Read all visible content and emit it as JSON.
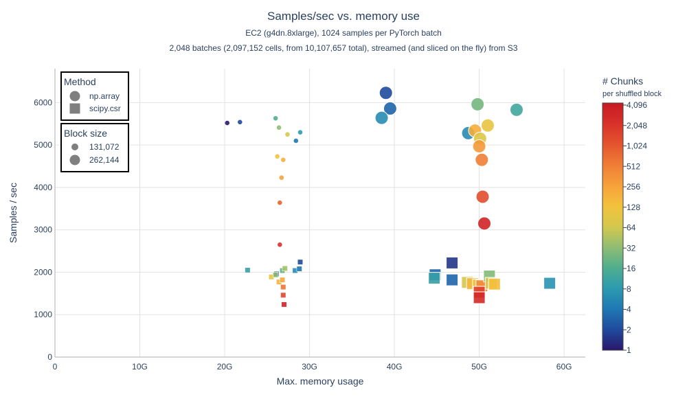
{
  "chart_data": {
    "type": "scatter",
    "title": "Samples/sec vs. memory use",
    "subtitles": [
      "EC2 (g4dn.8xlarge), 1024 samples per PyTorch batch",
      "2,048 batches (2,097,152 cells, from 10,107,657 total), streamed (and sliced on the fly) from S3"
    ],
    "xlabel": "Max. memory usage",
    "ylabel": "Samples / sec",
    "xlim": [
      0,
      62.5
    ],
    "ylim": [
      0,
      6800
    ],
    "x_ticks": [
      0,
      10,
      20,
      30,
      40,
      50,
      60
    ],
    "x_tick_labels": [
      "0",
      "10G",
      "20G",
      "30G",
      "40G",
      "50G",
      "60G"
    ],
    "y_ticks": [
      0,
      1000,
      2000,
      3000,
      4000,
      5000,
      6000
    ],
    "y_tick_labels": [
      "0",
      "1000",
      "2000",
      "3000",
      "4000",
      "5000",
      "6000"
    ],
    "grid": true,
    "legend": {
      "placement": "top-left",
      "method_title": "Method",
      "method_items": [
        {
          "label": "np.array",
          "symbol": "circle"
        },
        {
          "label": "scipy.csr",
          "symbol": "square"
        }
      ],
      "size_title": "Block size",
      "size_items": [
        {
          "label": "131,072",
          "block_size": 131072
        },
        {
          "label": "262,144",
          "block_size": 262144
        }
      ]
    },
    "colorbar": {
      "title": "# Chunks",
      "subtitle": "per shuffled block",
      "scale": "log2",
      "range": [
        1,
        4096
      ],
      "tick_values": [
        1,
        2,
        4,
        8,
        16,
        32,
        64,
        128,
        256,
        512,
        1024,
        2048,
        4096
      ],
      "tick_labels": [
        "1",
        "2",
        "4",
        "8",
        "16",
        "32",
        "64",
        "128",
        "256",
        "512",
        "1,024",
        "2,048",
        "4,096"
      ],
      "colors": [
        "#2a186c",
        "#1f4a9c",
        "#1f78b4",
        "#2c9ab0",
        "#4fae8f",
        "#8fbd72",
        "#d4c84e",
        "#f3c23c",
        "#f6a13b",
        "#ef7d36",
        "#e4542e",
        "#d8312a",
        "#c71a23"
      ]
    },
    "series": [
      {
        "name": "np.array",
        "symbol": "circle",
        "block_size": 131072,
        "points": [
          {
            "x": 20.3,
            "y": 5520,
            "chunks": 1
          },
          {
            "x": 21.8,
            "y": 5540,
            "chunks": 2
          },
          {
            "x": 26.0,
            "y": 5630,
            "chunks": 16
          },
          {
            "x": 26.4,
            "y": 5410,
            "chunks": 32
          },
          {
            "x": 27.4,
            "y": 5250,
            "chunks": 64
          },
          {
            "x": 28.4,
            "y": 5100,
            "chunks": 4
          },
          {
            "x": 28.9,
            "y": 5300,
            "chunks": 8
          },
          {
            "x": 26.2,
            "y": 4730,
            "chunks": 128
          },
          {
            "x": 26.9,
            "y": 4650,
            "chunks": 192
          },
          {
            "x": 26.7,
            "y": 4230,
            "chunks": 256
          },
          {
            "x": 26.5,
            "y": 3640,
            "chunks": 800
          },
          {
            "x": 26.5,
            "y": 2650,
            "chunks": 2048
          }
        ]
      },
      {
        "name": "np.array",
        "symbol": "circle",
        "block_size": 262144,
        "points": [
          {
            "x": 39.0,
            "y": 6230,
            "chunks": 2
          },
          {
            "x": 39.5,
            "y": 5860,
            "chunks": 3
          },
          {
            "x": 38.5,
            "y": 5640,
            "chunks": 6
          },
          {
            "x": 49.8,
            "y": 5960,
            "chunks": 24
          },
          {
            "x": 54.4,
            "y": 5830,
            "chunks": 12
          },
          {
            "x": 48.7,
            "y": 5280,
            "chunks": 6
          },
          {
            "x": 49.5,
            "y": 5340,
            "chunks": 200
          },
          {
            "x": 51.0,
            "y": 5460,
            "chunks": 100
          },
          {
            "x": 50.1,
            "y": 5150,
            "chunks": 80
          },
          {
            "x": 50.0,
            "y": 4970,
            "chunks": 300
          },
          {
            "x": 50.3,
            "y": 4650,
            "chunks": 500
          },
          {
            "x": 50.4,
            "y": 3780,
            "chunks": 1200
          },
          {
            "x": 50.6,
            "y": 3150,
            "chunks": 3000
          }
        ]
      },
      {
        "name": "scipy.csr",
        "symbol": "square",
        "block_size": 131072,
        "points": [
          {
            "x": 22.7,
            "y": 2050,
            "chunks": 10
          },
          {
            "x": 25.5,
            "y": 1890,
            "chunks": 96
          },
          {
            "x": 26.1,
            "y": 1960,
            "chunks": 2
          },
          {
            "x": 26.0,
            "y": 1940,
            "chunks": 32
          },
          {
            "x": 26.8,
            "y": 2040,
            "chunks": 20
          },
          {
            "x": 27.1,
            "y": 2090,
            "chunks": 40
          },
          {
            "x": 28.3,
            "y": 2040,
            "chunks": 6
          },
          {
            "x": 28.8,
            "y": 2080,
            "chunks": 4
          },
          {
            "x": 28.9,
            "y": 2240,
            "chunks": 2
          },
          {
            "x": 26.4,
            "y": 1770,
            "chunks": 180
          },
          {
            "x": 26.8,
            "y": 1820,
            "chunks": 220
          },
          {
            "x": 26.9,
            "y": 1650,
            "chunks": 600
          },
          {
            "x": 26.9,
            "y": 1460,
            "chunks": 1300
          },
          {
            "x": 27.0,
            "y": 1240,
            "chunks": 3000
          }
        ]
      },
      {
        "name": "scipy.csr",
        "symbol": "square",
        "block_size": 262144,
        "points": [
          {
            "x": 44.8,
            "y": 1940,
            "chunks": 3
          },
          {
            "x": 44.7,
            "y": 1860,
            "chunks": 10
          },
          {
            "x": 46.8,
            "y": 2220,
            "chunks": 1.5
          },
          {
            "x": 46.8,
            "y": 1820,
            "chunks": 3
          },
          {
            "x": 48.6,
            "y": 1760,
            "chunks": 70
          },
          {
            "x": 49.2,
            "y": 1730,
            "chunks": 160
          },
          {
            "x": 49.9,
            "y": 1700,
            "chunks": 110
          },
          {
            "x": 50.3,
            "y": 1680,
            "chunks": 400
          },
          {
            "x": 50.0,
            "y": 1530,
            "chunks": 1500
          },
          {
            "x": 50.0,
            "y": 1400,
            "chunks": 2500
          },
          {
            "x": 51.2,
            "y": 1910,
            "chunks": 28
          },
          {
            "x": 51.4,
            "y": 1740,
            "chunks": 90
          },
          {
            "x": 51.8,
            "y": 1720,
            "chunks": 140
          },
          {
            "x": 58.3,
            "y": 1740,
            "chunks": 7
          }
        ]
      }
    ]
  }
}
